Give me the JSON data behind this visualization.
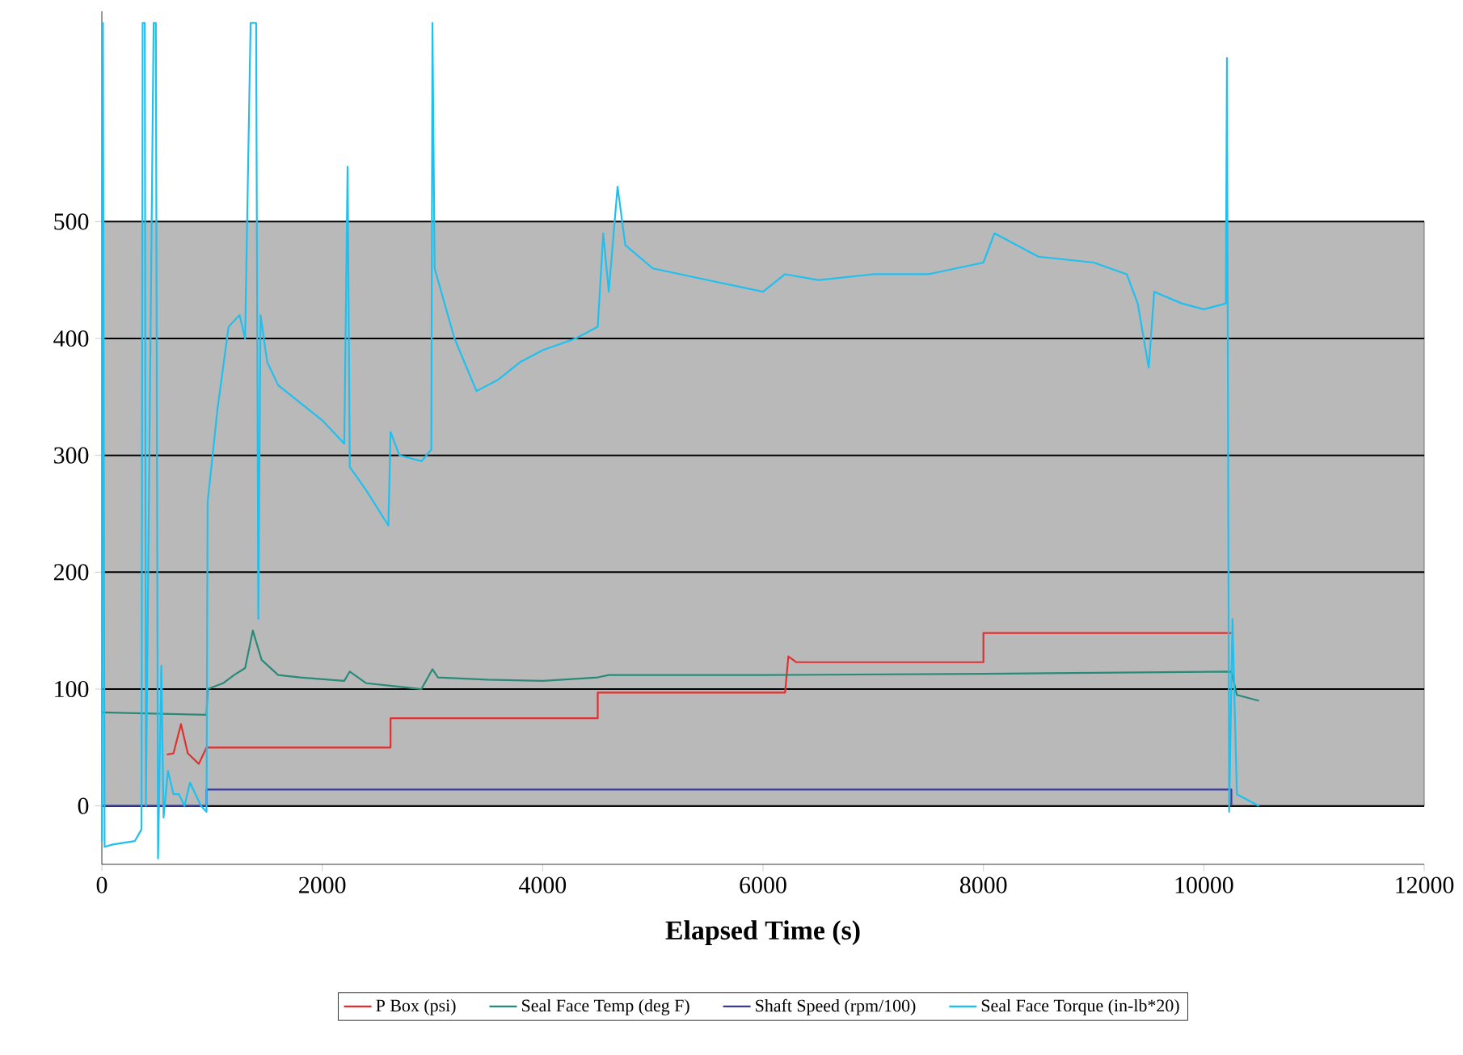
{
  "chart_data": {
    "type": "line",
    "xlabel": "Elapsed Time (s)",
    "xlim": [
      0,
      12000
    ],
    "xticks": [
      0,
      2000,
      4000,
      6000,
      8000,
      10000,
      12000
    ],
    "ylim": [
      -50,
      680
    ],
    "yticks": [
      0,
      100,
      200,
      300,
      400,
      500
    ],
    "grid": "y",
    "legend": "bottom",
    "line_style": "solid",
    "bands": [
      {
        "axis": "y",
        "from": 0,
        "to": 500,
        "color": "#b9b9b9"
      }
    ],
    "series": [
      {
        "name": "P Box (psi)",
        "color": "#e03030",
        "x": [
          590,
          650,
          718,
          780,
          880,
          950,
          950,
          2620,
          2620,
          4500,
          4500,
          6200,
          6230,
          6300,
          8000,
          8000,
          10250
        ],
        "values": [
          44,
          45,
          70,
          45,
          36,
          50,
          50,
          50,
          75,
          75,
          97,
          97,
          128,
          123,
          123,
          148,
          148
        ]
      },
      {
        "name": "Seal Face Temp (deg F)",
        "color": "#2a8a78",
        "x": [
          0,
          950,
          960,
          1100,
          1200,
          1300,
          1370,
          1450,
          1600,
          1800,
          2200,
          2250,
          2400,
          2600,
          2900,
          3000,
          3050,
          3500,
          4000,
          4500,
          4600,
          6000,
          8000,
          10250,
          10300,
          10500
        ],
        "values": [
          80,
          78,
          100,
          105,
          112,
          118,
          150,
          125,
          112,
          110,
          107,
          115,
          105,
          103,
          100,
          117,
          110,
          108,
          107,
          110,
          112,
          112,
          113,
          115,
          95,
          90
        ]
      },
      {
        "name": "Shaft Speed (rpm/100)",
        "color": "#3b3b9b",
        "x": [
          0,
          950,
          950,
          10250,
          10250
        ],
        "values": [
          0,
          0,
          14,
          14,
          0
        ]
      },
      {
        "name": "Seal Face Torque (in-lb*20)",
        "color": "#1ec0f0",
        "x": [
          0,
          10,
          25,
          100,
          300,
          360,
          370,
          390,
          400,
          470,
          490,
          510,
          540,
          560,
          600,
          650,
          700,
          750,
          800,
          900,
          950,
          960,
          1050,
          1150,
          1250,
          1300,
          1350,
          1400,
          1420,
          1440,
          1500,
          1600,
          1800,
          2000,
          2200,
          2230,
          2250,
          2400,
          2600,
          2620,
          2700,
          2900,
          2990,
          3000,
          3020,
          3200,
          3400,
          3600,
          3800,
          4000,
          4300,
          4500,
          4550,
          4600,
          4680,
          4750,
          5000,
          5500,
          6000,
          6200,
          6500,
          7000,
          7500,
          8000,
          8100,
          8500,
          9000,
          9300,
          9400,
          9500,
          9550,
          9800,
          10000,
          10200,
          10210,
          10230,
          10260,
          10300,
          10500
        ],
        "values": [
          -30,
          670,
          -35,
          -33,
          -30,
          -20,
          670,
          670,
          0,
          670,
          670,
          -45,
          120,
          -10,
          30,
          10,
          10,
          0,
          20,
          0,
          -5,
          260,
          340,
          410,
          420,
          400,
          670,
          670,
          160,
          420,
          380,
          360,
          345,
          330,
          310,
          547,
          290,
          270,
          240,
          320,
          300,
          295,
          305,
          670,
          460,
          400,
          355,
          365,
          380,
          390,
          400,
          410,
          490,
          440,
          530,
          480,
          460,
          450,
          440,
          455,
          450,
          455,
          455,
          465,
          490,
          470,
          465,
          455,
          430,
          375,
          440,
          430,
          425,
          430,
          640,
          -5,
          160,
          10,
          0
        ]
      }
    ]
  }
}
